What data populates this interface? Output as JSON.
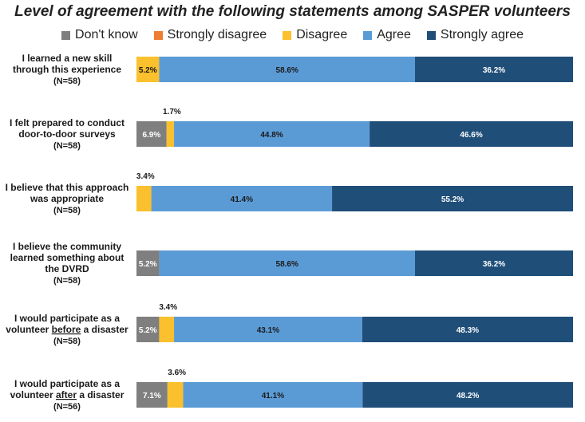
{
  "chart_data": {
    "type": "bar",
    "orientation": "horizontal",
    "stacked": true,
    "title": "Level of agreement with the following statements among SASPER volunteers",
    "legend_position": "top",
    "categories": [
      {
        "lines": [
          "I learned a new skill",
          "through this experience"
        ],
        "n": "(N=58)"
      },
      {
        "lines": [
          "I felt prepared to conduct",
          "door-to-door surveys"
        ],
        "n": "(N=58)"
      },
      {
        "lines": [
          "I believe that this approach",
          "was appropriate"
        ],
        "n": "(N=58)"
      },
      {
        "lines": [
          "I believe the community",
          "learned something about",
          "the DVRD"
        ],
        "n": "(N=58)"
      },
      {
        "lines": [
          "I would participate as a",
          "volunteer before a disaster"
        ],
        "n": "(N=58)",
        "underline": "before"
      },
      {
        "lines": [
          "I would participate as a",
          "volunteer after a disaster"
        ],
        "n": "(N=56)",
        "underline": "after"
      }
    ],
    "series": [
      {
        "name": "Don't know",
        "color": "#7f7f7f",
        "values": [
          0,
          6.9,
          0,
          5.2,
          5.2,
          7.1
        ],
        "labels": [
          "",
          "6.9%",
          "",
          "5.2%",
          "5.2%",
          "7.1%"
        ]
      },
      {
        "name": "Strongly disagree",
        "color": "#ed7d31",
        "values": [
          0,
          0,
          0,
          0,
          0,
          0
        ],
        "labels": [
          "",
          "",
          "",
          "",
          "",
          ""
        ]
      },
      {
        "name": "Disagree",
        "color": "#fbc02d",
        "values": [
          5.2,
          1.7,
          3.4,
          0,
          3.4,
          3.6
        ],
        "labels": [
          "5.2%",
          "1.7%",
          "3.4%",
          "",
          "3.4%",
          "3.6%"
        ]
      },
      {
        "name": "Agree",
        "color": "#5b9bd5",
        "values": [
          58.6,
          44.8,
          41.4,
          58.6,
          43.1,
          41.1
        ],
        "labels": [
          "58.6%",
          "44.8%",
          "41.4%",
          "58.6%",
          "43.1%",
          "41.1%"
        ]
      },
      {
        "name": "Strongly agree",
        "color": "#1f4e79",
        "values": [
          36.2,
          46.6,
          55.2,
          36.2,
          48.3,
          48.2
        ],
        "labels": [
          "36.2%",
          "46.6%",
          "55.2%",
          "36.2%",
          "48.3%",
          "48.2%"
        ]
      }
    ],
    "xlim": [
      0,
      100
    ],
    "xlabel": "",
    "ylabel": "",
    "grid": false
  }
}
